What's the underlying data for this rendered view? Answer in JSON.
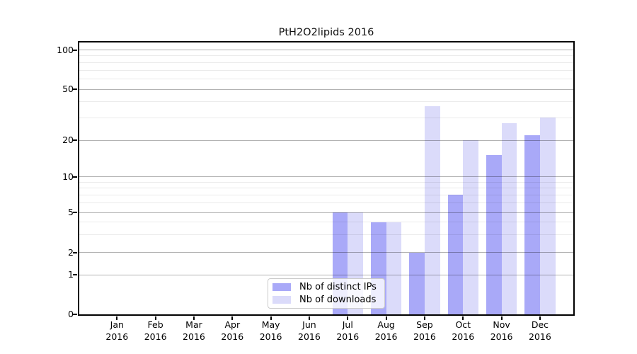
{
  "title": "PtH2O2lipids 2016",
  "legend": {
    "items": [
      {
        "label": "Nb of distinct IPs",
        "color": "#a9a9f8"
      },
      {
        "label": "Nb of downloads",
        "color": "#dbdbfa"
      }
    ]
  },
  "y_axis": {
    "tick_labels": [
      "0",
      "1",
      "2",
      "5",
      "10",
      "20",
      "50",
      "100"
    ]
  },
  "x_axis": {
    "year": "2016",
    "months": [
      "Jan",
      "Feb",
      "Mar",
      "Apr",
      "May",
      "Jun",
      "Jul",
      "Aug",
      "Sep",
      "Oct",
      "Nov",
      "Dec"
    ]
  },
  "chart_data": {
    "type": "bar",
    "title": "PtH2O2lipids 2016",
    "categories": [
      "Jan 2016",
      "Feb 2016",
      "Mar 2016",
      "Apr 2016",
      "May 2016",
      "Jun 2016",
      "Jul 2016",
      "Aug 2016",
      "Sep 2016",
      "Oct 2016",
      "Nov 2016",
      "Dec 2016"
    ],
    "series": [
      {
        "name": "Nb of distinct IPs",
        "color": "#a9a9f8",
        "values": [
          0,
          0,
          0,
          0,
          0,
          0,
          5,
          4,
          2,
          7,
          15,
          22
        ]
      },
      {
        "name": "Nb of downloads",
        "color": "#dbdbfa",
        "values": [
          0,
          0,
          0,
          0,
          0,
          0,
          5,
          4,
          37,
          20,
          27,
          30
        ]
      }
    ],
    "xlabel": "",
    "ylabel": "",
    "yscale": "symlog",
    "ylim": [
      0,
      115
    ],
    "y_major_ticks": [
      0,
      1,
      2,
      5,
      10,
      20,
      50,
      100
    ],
    "y_minor_ticks": [
      3,
      4,
      6,
      7,
      8,
      9,
      30,
      40,
      60,
      70,
      80,
      90
    ],
    "grid": true,
    "legend_position": "lower center",
    "bar_colors": {
      "distinct_ips": "#a9a9f8",
      "downloads": "#dbdbfa"
    }
  }
}
